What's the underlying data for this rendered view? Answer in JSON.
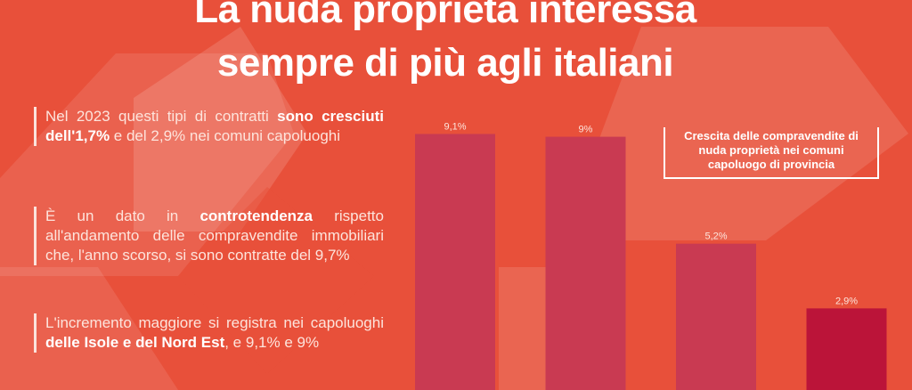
{
  "title": {
    "line1": "La nuda proprietà interessa",
    "line2": "sempre di più agli italiani"
  },
  "paragraphs": [
    {
      "pre": "Nel 2023 questi tipi di contratti ",
      "bold": "sono cresciuti dell'1,7%",
      "post": " e del 2,9% nei comuni capoluoghi"
    },
    {
      "pre": "È un dato in ",
      "bold": "controtendenza",
      "post": " rispetto all'andamento delle compravendite immobiliari che, l'anno scorso, si sono contratte del 9,7%"
    },
    {
      "pre": "L'incremento maggiore si registra nei capoluoghi ",
      "bold": "delle Isole e del Nord Est",
      "post": ", e 9,1% e 9%"
    }
  ],
  "chart_data": {
    "type": "bar",
    "title": "Crescita delle compravendite di nuda proprietà nei comuni capoluogo di provincia",
    "categories": [
      "",
      "",
      "",
      ""
    ],
    "values": [
      9.1,
      9.0,
      5.2,
      2.9
    ],
    "labels": [
      "9,1%",
      "9%",
      "5,2%",
      "2,9%"
    ],
    "colors": [
      "#c93a52",
      "#c93a52",
      "#c93a52",
      "#bb1439"
    ],
    "ylim": [
      0,
      10
    ]
  }
}
